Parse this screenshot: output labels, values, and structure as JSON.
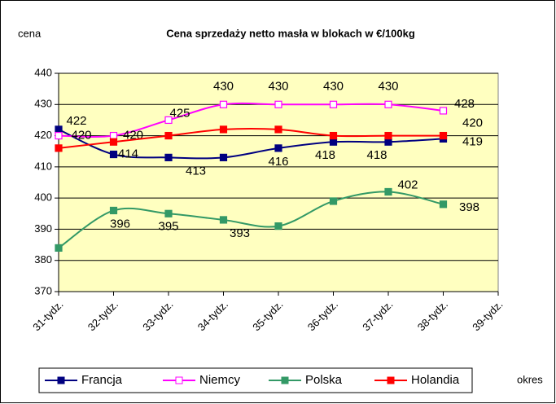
{
  "chart_data": {
    "type": "line",
    "title": "Cena sprzedaży netto masła w blokach w €/100kg",
    "y_label": "cena",
    "x_label": "okres",
    "categories": [
      "31-tydz.",
      "32-tydz.",
      "33-tydz.",
      "34-tydz.",
      "35-tydz.",
      "36-tydz.",
      "37-tydz.",
      "38-tydz.",
      "39-tydz."
    ],
    "ylim": [
      370,
      440
    ],
    "yticks": [
      370,
      380,
      390,
      400,
      410,
      420,
      430,
      440
    ],
    "grid": true,
    "series": [
      {
        "name": "Francja",
        "color": "#000080",
        "marker": "filled",
        "values": [
          422,
          414,
          413,
          413,
          416,
          418,
          418,
          419,
          null
        ],
        "value_labels": [
          "422",
          "414",
          null,
          "413",
          "416",
          "418",
          "418",
          "419",
          null
        ]
      },
      {
        "name": "Niemcy",
        "color": "#ff00ff",
        "marker": "open",
        "values": [
          420,
          420,
          425,
          430,
          430,
          430,
          430,
          428,
          null
        ],
        "value_labels": [
          "420",
          "420",
          "425",
          "430",
          "430",
          "430",
          "430",
          "428",
          null
        ]
      },
      {
        "name": "Polska",
        "color": "#339966",
        "marker": "filled",
        "values": [
          384,
          396,
          395,
          393,
          391,
          399,
          402,
          398,
          null
        ],
        "value_labels": [
          null,
          "396",
          "395",
          "393",
          null,
          null,
          "402",
          "398",
          null
        ]
      },
      {
        "name": "Holandia",
        "color": "#ff0000",
        "marker": "filled",
        "values": [
          416,
          418,
          420,
          422,
          422,
          420,
          420,
          420,
          null
        ],
        "value_labels": [
          null,
          null,
          null,
          null,
          null,
          null,
          null,
          "420",
          null
        ]
      }
    ]
  }
}
